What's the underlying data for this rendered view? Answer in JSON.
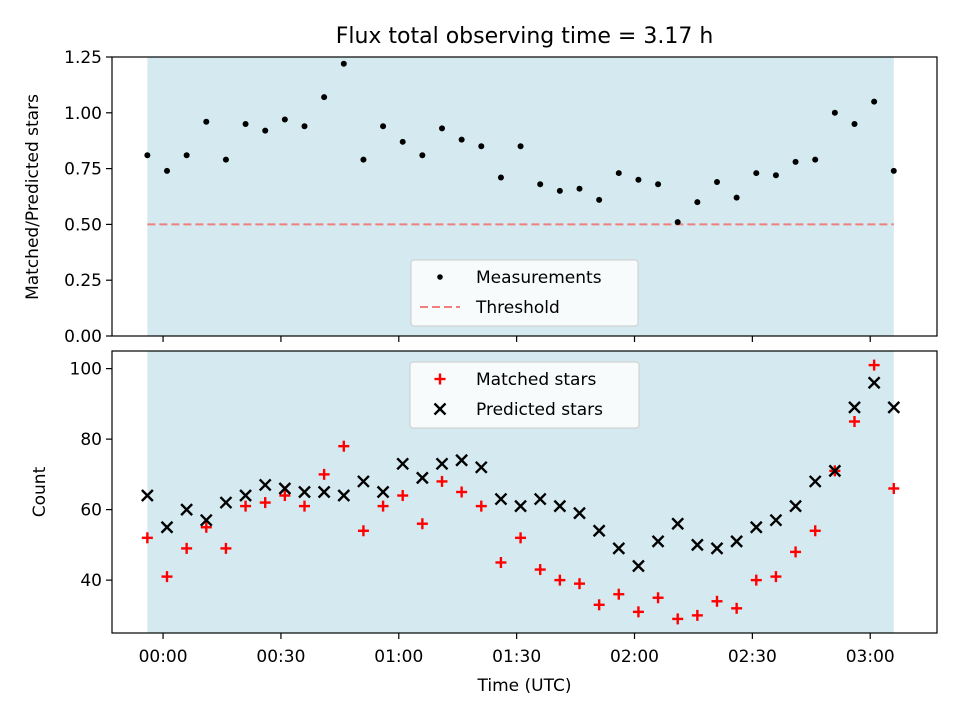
{
  "title": "Flux total observing time = 3.17 h",
  "x_tick_labels": [
    "00:00",
    "00:30",
    "01:00",
    "01:30",
    "02:00",
    "02:30",
    "03:00"
  ],
  "colors": {
    "shade": "#d4eaf0",
    "threshold": "#f07f7f",
    "matched": "#ff0000",
    "predicted": "#000000",
    "measurement": "#000000"
  },
  "chart_data": [
    {
      "type": "scatter",
      "panel": "top",
      "ylabel": "Matched/Predicted stars",
      "xlabel": "",
      "ylim": [
        0,
        1.25
      ],
      "y_tick_labels": [
        "0.00",
        "0.25",
        "0.50",
        "0.75",
        "1.00",
        "1.25"
      ],
      "xlim_minutes": [
        -13,
        197
      ],
      "shaded_span_minutes": [
        -4,
        186
      ],
      "legend_position": "lower center",
      "threshold": {
        "name": "Threshold",
        "value": 0.5,
        "style": "dashed"
      },
      "series": [
        {
          "name": "Measurements",
          "marker": "dot",
          "x_minutes": [
            -4,
            1,
            6,
            11,
            16,
            21,
            26,
            31,
            36,
            41,
            46,
            51,
            56,
            61,
            66,
            71,
            76,
            81,
            86,
            91,
            96,
            101,
            106,
            111,
            116,
            121,
            126,
            131,
            136,
            141,
            146,
            151,
            156,
            161,
            166,
            171,
            176,
            181,
            186
          ],
          "y": [
            0.81,
            0.74,
            0.81,
            0.96,
            0.79,
            0.95,
            0.92,
            0.97,
            0.94,
            1.07,
            1.22,
            0.79,
            0.94,
            0.87,
            0.81,
            0.93,
            0.88,
            0.85,
            0.71,
            0.85,
            0.68,
            0.65,
            0.66,
            0.61,
            0.73,
            0.7,
            0.68,
            0.51,
            0.6,
            0.69,
            0.62,
            0.73,
            0.72,
            0.78,
            0.79,
            1.0,
            0.95,
            1.05,
            0.74
          ]
        }
      ]
    },
    {
      "type": "scatter",
      "panel": "bottom",
      "ylabel": "Count",
      "xlabel": "Time (UTC)",
      "ylim": [
        25,
        105
      ],
      "y_tick_labels": [
        "40",
        "60",
        "80",
        "100"
      ],
      "y_tick_values": [
        40,
        60,
        80,
        100
      ],
      "xlim_minutes": [
        -13,
        197
      ],
      "x_tick_values_minutes": [
        0,
        30,
        60,
        90,
        120,
        150,
        180
      ],
      "shaded_span_minutes": [
        -4,
        186
      ],
      "legend_position": "upper center",
      "series": [
        {
          "name": "Matched stars",
          "marker": "plus",
          "x_minutes": [
            -4,
            1,
            6,
            11,
            16,
            21,
            26,
            31,
            36,
            41,
            46,
            51,
            56,
            61,
            66,
            71,
            76,
            81,
            86,
            91,
            96,
            101,
            106,
            111,
            116,
            121,
            126,
            131,
            136,
            141,
            146,
            151,
            156,
            161,
            166,
            171,
            176,
            181,
            186
          ],
          "y": [
            52,
            41,
            49,
            55,
            49,
            61,
            62,
            64,
            61,
            70,
            78,
            54,
            61,
            64,
            56,
            68,
            65,
            61,
            45,
            52,
            43,
            40,
            39,
            33,
            36,
            31,
            35,
            29,
            30,
            34,
            32,
            40,
            41,
            48,
            54,
            71,
            85,
            101,
            66
          ]
        },
        {
          "name": "Predicted stars",
          "marker": "x",
          "x_minutes": [
            -4,
            1,
            6,
            11,
            16,
            21,
            26,
            31,
            36,
            41,
            46,
            51,
            56,
            61,
            66,
            71,
            76,
            81,
            86,
            91,
            96,
            101,
            106,
            111,
            116,
            121,
            126,
            131,
            136,
            141,
            146,
            151,
            156,
            161,
            166,
            171,
            176,
            181,
            186
          ],
          "y": [
            64,
            55,
            60,
            57,
            62,
            64,
            67,
            66,
            65,
            65,
            64,
            68,
            65,
            73,
            69,
            73,
            74,
            72,
            63,
            61,
            63,
            61,
            59,
            54,
            49,
            44,
            51,
            56,
            50,
            49,
            51,
            55,
            57,
            61,
            68,
            71,
            89,
            96,
            89
          ]
        }
      ]
    }
  ]
}
